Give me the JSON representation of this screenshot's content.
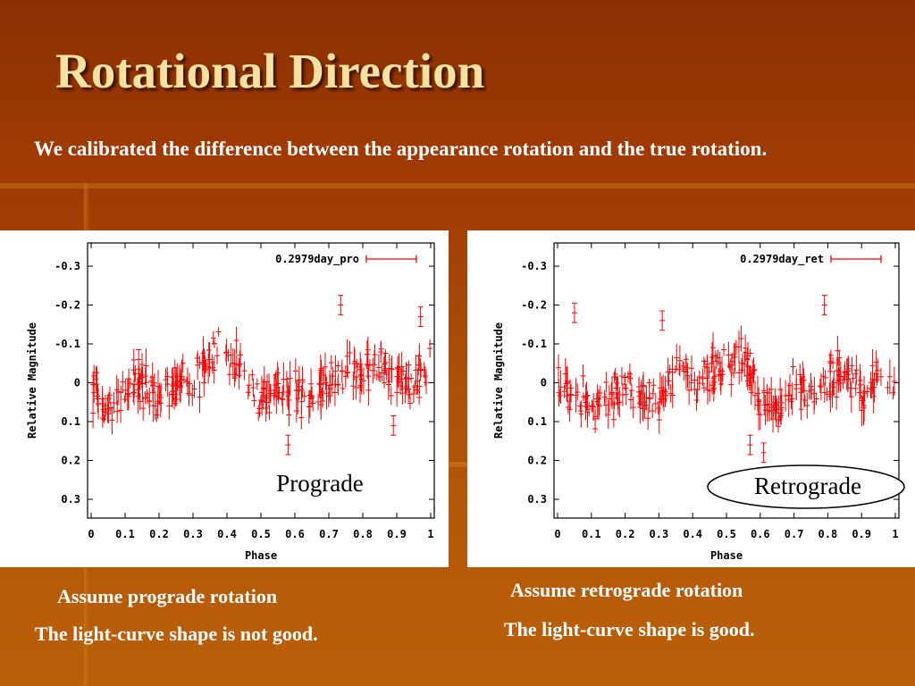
{
  "slide": {
    "title": "Rotational Direction",
    "intro": "We calibrated the difference between the appearance rotation and the true rotation.",
    "captions": {
      "left_line1": "Assume prograde  rotation",
      "left_line2": "The light-curve shape is not good.",
      "right_line1": "Assume retrograde  rotation",
      "right_line2": "The light-curve shape is good."
    },
    "colors": {
      "background": "#a03d05",
      "title": "#f5e2a0",
      "data": "#ff0000"
    }
  },
  "chart_data": [
    {
      "type": "scatter",
      "series": [
        {
          "name": "0.2979day_pro",
          "color": "#ff0000",
          "error_bars": true
        }
      ],
      "annotation": "Prograde",
      "xlabel": "Phase",
      "ylabel": "Relative Magnitude",
      "xlim": [
        0,
        1
      ],
      "ylim": [
        -0.3,
        0.3
      ],
      "y_inverted": true,
      "xticks": [
        "0",
        "0.1",
        "0.2",
        "0.3",
        "0.4",
        "0.5",
        "0.6",
        "0.7",
        "0.8",
        "0.9",
        "1"
      ],
      "yticks": [
        "-0.3",
        "-0.2",
        "-0.1",
        "0",
        "0.1",
        "0.2",
        "0.3"
      ],
      "legend_position": "top-right",
      "profile": [
        [
          0.0,
          0.02
        ],
        [
          0.05,
          0.06
        ],
        [
          0.1,
          0.02
        ],
        [
          0.15,
          0.0
        ],
        [
          0.2,
          0.03
        ],
        [
          0.25,
          0.0
        ],
        [
          0.3,
          0.0
        ],
        [
          0.35,
          -0.05
        ],
        [
          0.4,
          -0.07
        ],
        [
          0.45,
          -0.03
        ],
        [
          0.5,
          0.05
        ],
        [
          0.55,
          0.02
        ],
        [
          0.6,
          0.04
        ],
        [
          0.65,
          0.03
        ],
        [
          0.7,
          0.0
        ],
        [
          0.75,
          -0.04
        ],
        [
          0.8,
          -0.02
        ],
        [
          0.85,
          -0.04
        ],
        [
          0.9,
          -0.03
        ],
        [
          0.95,
          0.01
        ],
        [
          1.0,
          -0.04
        ]
      ],
      "outliers": [
        [
          0.735,
          -0.2
        ],
        [
          0.97,
          -0.17
        ],
        [
          0.14,
          -0.06
        ],
        [
          0.58,
          0.16
        ],
        [
          0.89,
          0.11
        ]
      ]
    },
    {
      "type": "scatter",
      "series": [
        {
          "name": "0.2979day_ret",
          "color": "#ff0000",
          "error_bars": true
        }
      ],
      "annotation": "Retrograde",
      "xlabel": "Phase",
      "ylabel": "Relative Magnitude",
      "xlim": [
        0,
        1
      ],
      "ylim": [
        -0.3,
        0.3
      ],
      "y_inverted": true,
      "xticks": [
        "0",
        "0.1",
        "0.2",
        "0.3",
        "0.4",
        "0.5",
        "0.6",
        "0.7",
        "0.8",
        "0.9",
        "1"
      ],
      "yticks": [
        "-0.3",
        "-0.2",
        "-0.1",
        "0",
        "0.1",
        "0.2",
        "0.3"
      ],
      "legend_position": "top-right",
      "profile": [
        [
          0.0,
          -0.02
        ],
        [
          0.05,
          0.03
        ],
        [
          0.1,
          0.07
        ],
        [
          0.15,
          0.05
        ],
        [
          0.2,
          0.01
        ],
        [
          0.25,
          0.04
        ],
        [
          0.3,
          0.05
        ],
        [
          0.35,
          -0.03
        ],
        [
          0.4,
          0.0
        ],
        [
          0.45,
          -0.02
        ],
        [
          0.5,
          -0.05
        ],
        [
          0.55,
          -0.07
        ],
        [
          0.6,
          0.05
        ],
        [
          0.65,
          0.08
        ],
        [
          0.7,
          0.0
        ],
        [
          0.75,
          0.03
        ],
        [
          0.8,
          0.0
        ],
        [
          0.85,
          -0.03
        ],
        [
          0.9,
          0.02
        ],
        [
          0.95,
          -0.02
        ],
        [
          1.0,
          0.0
        ]
      ],
      "outliers": [
        [
          0.79,
          -0.2
        ],
        [
          0.05,
          -0.18
        ],
        [
          0.57,
          0.16
        ],
        [
          0.61,
          0.18
        ],
        [
          0.31,
          -0.16
        ]
      ]
    }
  ]
}
